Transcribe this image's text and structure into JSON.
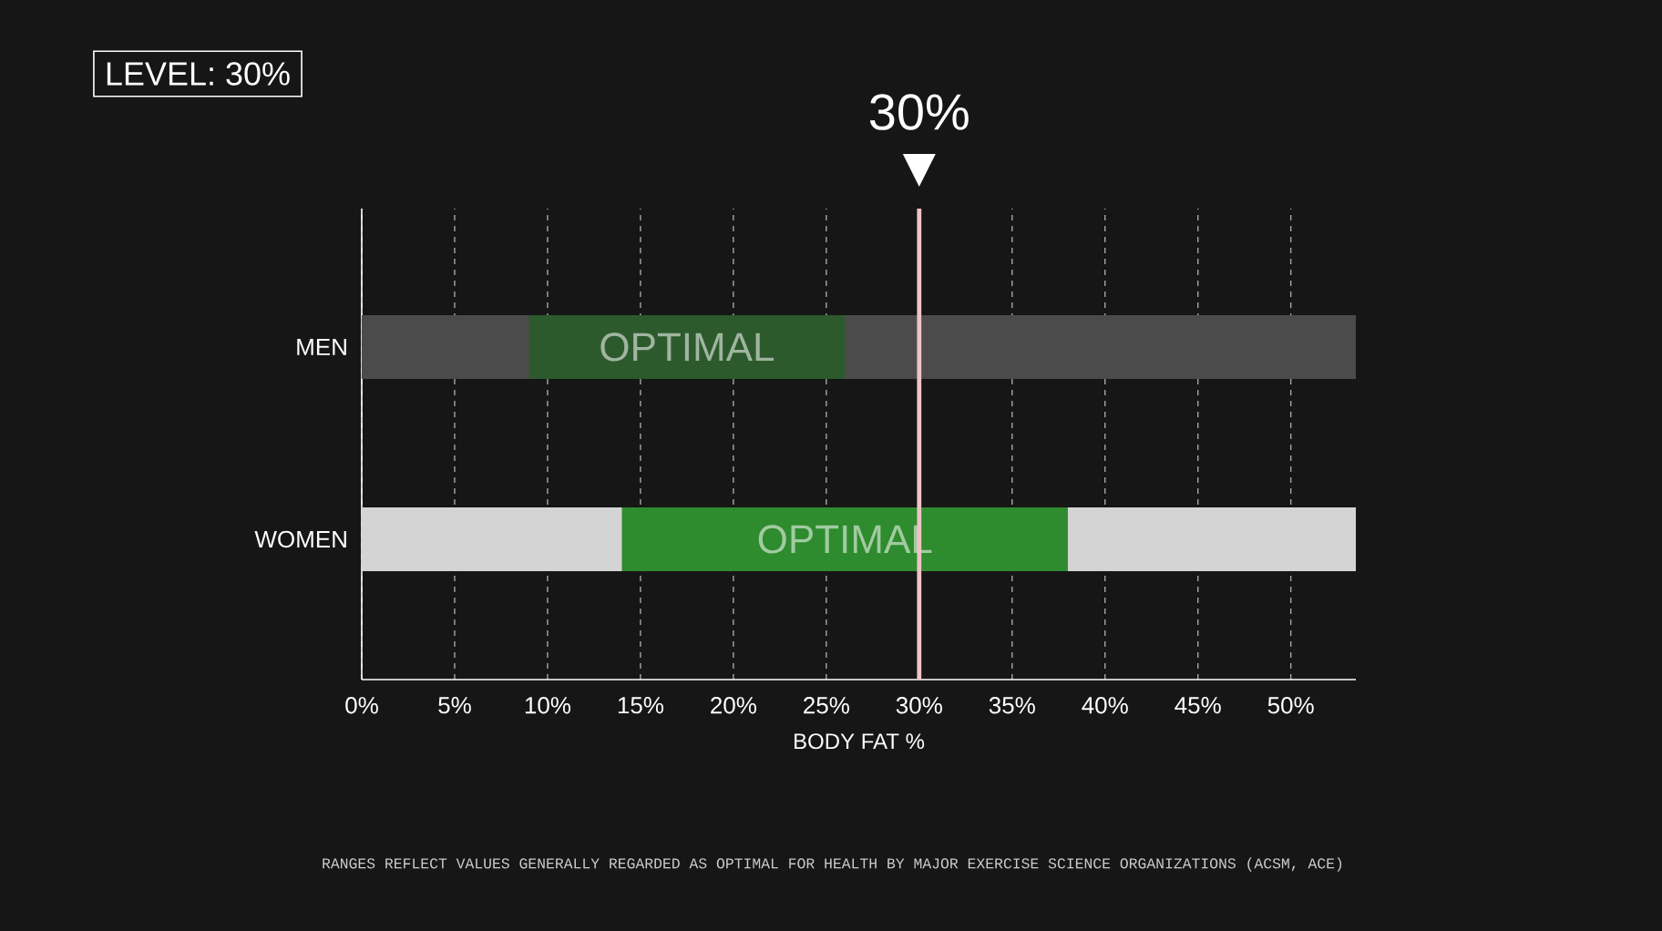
{
  "chart_data": {
    "type": "bar",
    "orientation": "horizontal",
    "title": "LEVEL: 30%",
    "xlabel": "BODY FAT %",
    "categories": [
      "MEN",
      "WOMEN"
    ],
    "series": [
      {
        "colors": [
          "#4b4b4b",
          "#d4d4d4"
        ],
        "base": [
          0,
          0
        ],
        "values": [
          53.5,
          53.5
        ]
      },
      {
        "colors": [
          "#2d5a2d",
          "#2e8b2e"
        ],
        "base": [
          9,
          14
        ],
        "values": [
          17,
          24
        ],
        "value_labels": [
          "OPTIMAL",
          "OPTIMAL"
        ]
      }
    ],
    "xlim": [
      0,
      53.5
    ],
    "xticks": [
      {
        "value": 0,
        "label": "0%"
      },
      {
        "value": 5,
        "label": "5%"
      },
      {
        "value": 10,
        "label": "10%"
      },
      {
        "value": 15,
        "label": "15%"
      },
      {
        "value": 20,
        "label": "20%"
      },
      {
        "value": 25,
        "label": "25%"
      },
      {
        "value": 30,
        "label": "30%"
      },
      {
        "value": 35,
        "label": "35%"
      },
      {
        "value": 40,
        "label": "40%"
      },
      {
        "value": 45,
        "label": "45%"
      },
      {
        "value": 50,
        "label": "50%"
      }
    ],
    "grid": "x",
    "ref_lines": [
      {
        "axis": "x",
        "value": 30,
        "label": "30%",
        "color": "#eec4c4"
      }
    ],
    "annotations": [
      "RANGES REFLECT VALUES GENERALLY REGARDED AS OPTIMAL FOR HEALTH BY MAJOR EXERCISE SCIENCE ORGANIZATIONS (ACSM, ACE)"
    ]
  }
}
